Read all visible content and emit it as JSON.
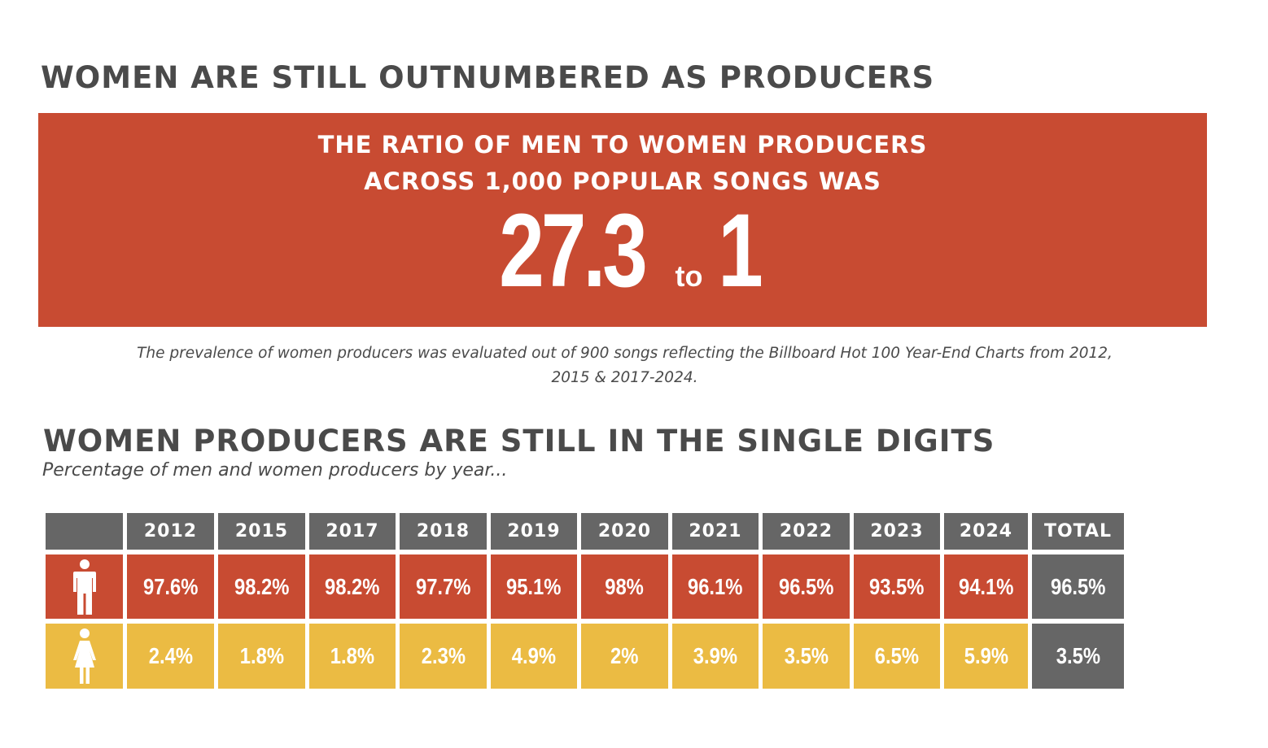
{
  "title1": "WOMEN ARE STILL OUTNUMBERED AS PRODUCERS",
  "ratio": {
    "line1": "THE RATIO OF MEN TO WOMEN PRODUCERS",
    "line2": "ACROSS 1,000 POPULAR SONGS WAS",
    "left": "27.3",
    "to": "to",
    "right": "1"
  },
  "note": "The prevalence of women producers was evaluated out of 900 songs reflecting the Billboard Hot 100 Year-End Charts from 2012, 2015 &  2017-2024.",
  "title2": "WOMEN PRODUCERS ARE STILL IN THE SINGLE DIGITS",
  "subtitle": "Percentage of men and women producers by year...",
  "colors": {
    "men": "#c84b32",
    "women": "#ebbb43",
    "header": "#666666",
    "total": "#666666",
    "text": "#4a4a4a"
  },
  "icons": {
    "men": "man-icon",
    "women": "woman-icon"
  },
  "chart_data": {
    "type": "table",
    "columns": [
      "2012",
      "2015",
      "2017",
      "2018",
      "2019",
      "2020",
      "2021",
      "2022",
      "2023",
      "2024",
      "TOTAL"
    ],
    "rows": [
      {
        "icon": "man-icon",
        "cells": [
          "97.6%",
          "98.2%",
          "98.2%",
          "97.7%",
          "95.1%",
          "98%",
          "96.1%",
          "96.5%",
          "93.5%",
          "94.1%",
          "96.5%"
        ]
      },
      {
        "icon": "woman-icon",
        "cells": [
          "2.4%",
          "1.8%",
          "1.8%",
          "2.3%",
          "4.9%",
          "2%",
          "3.9%",
          "3.5%",
          "6.5%",
          "5.9%",
          "3.5%"
        ]
      }
    ]
  }
}
